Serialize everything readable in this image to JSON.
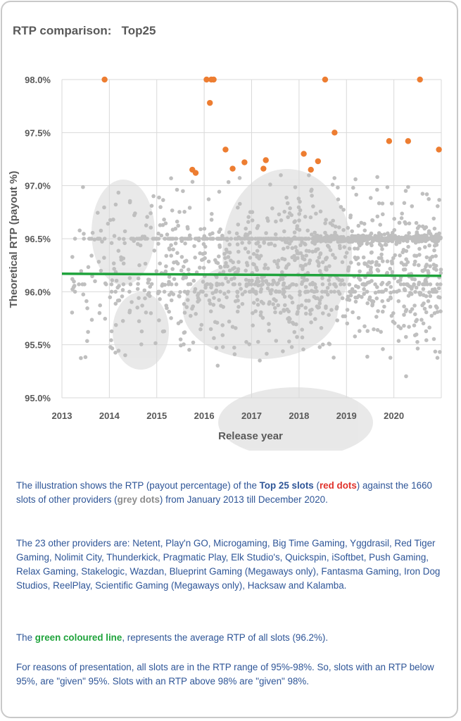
{
  "card": {
    "title": "RTP comparison:   Top25"
  },
  "chart_data": {
    "type": "scatter",
    "title": "RTP comparison:   Top25",
    "xlabel": "Release year",
    "ylabel": "Theoretical RTP (payout %)",
    "xlim": [
      2013,
      2021
    ],
    "ylim": [
      95.0,
      98.0
    ],
    "x_ticks": [
      "2013",
      "2014",
      "2015",
      "2016",
      "2017",
      "2018",
      "2019",
      "2020"
    ],
    "y_ticks": [
      "95.0%",
      "95.5%",
      "96.0%",
      "96.5%",
      "97.0%",
      "97.5%",
      "98.0%"
    ],
    "grid": true,
    "colors": {
      "top25": "#ed7d31",
      "others": "#bfbfbf",
      "average": "#1fa33c"
    },
    "series": [
      {
        "name": "Top 25 slots",
        "color": "#ed7d31",
        "points": [
          [
            2013.9,
            98.0
          ],
          [
            2016.05,
            98.0
          ],
          [
            2016.15,
            98.0
          ],
          [
            2016.2,
            98.0
          ],
          [
            2016.12,
            97.78
          ],
          [
            2018.55,
            98.0
          ],
          [
            2020.55,
            98.0
          ],
          [
            2018.75,
            97.5
          ],
          [
            2016.45,
            97.34
          ],
          [
            2016.85,
            97.22
          ],
          [
            2016.6,
            97.16
          ],
          [
            2017.25,
            97.16
          ],
          [
            2017.3,
            97.24
          ],
          [
            2018.1,
            97.3
          ],
          [
            2018.25,
            97.15
          ],
          [
            2018.4,
            97.23
          ],
          [
            2019.9,
            97.42
          ],
          [
            2020.3,
            97.42
          ],
          [
            2020.95,
            97.34
          ],
          [
            2015.75,
            97.15
          ],
          [
            2015.82,
            97.12
          ]
        ]
      },
      {
        "name": "Other providers (1660 slots)",
        "color": "#bfbfbf",
        "count": 1660
      },
      {
        "name": "Average RTP of all slots",
        "color": "#1fa33c",
        "type": "line",
        "x": [
          2013,
          2021
        ],
        "y": [
          96.17,
          96.15
        ]
      }
    ]
  },
  "description": {
    "p1": {
      "a": "The illustration shows the RTP (payout percentage) of the ",
      "b": "Top 25 slots",
      "c": "  (",
      "d": "red dots",
      "e": ") against the 1660 slots of other providers (",
      "f": "grey dots",
      "g": ") from January 2013 till December 2020."
    },
    "p2": "The 23 other providers are: Netent,  Play'n GO, Microgaming, Big Time Gaming, Yggdrasil, Red Tiger Gaming, Nolimit City, Thunderkick, Pragmatic Play, Elk Studio's, Quickspin, iSoftbet,  Push Gaming, Relax Gaming, Stakelogic, Wazdan, Blueprint Gaming (Megaways only), Fantasma Gaming, Iron Dog Studios, ReelPlay, Scientific Gaming (Megaways only), Hacksaw and Kalamba.",
    "p3": {
      "a": "The ",
      "b": "green coloured line",
      "c": ", represents the average RTP of all slots (96.2%)."
    },
    "p4": "For reasons of presentation,  all slots are in the RTP range of 95%-98%. So, slots with an RTP  below 95%, are \"given\" 95%. Slots with an RTP above 98% are \"given\" 98%."
  }
}
